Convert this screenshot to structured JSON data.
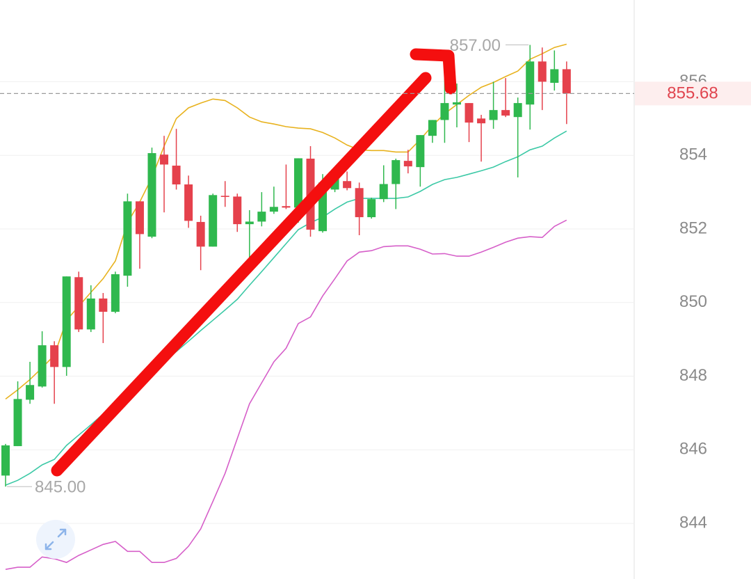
{
  "chart_data": {
    "type": "candlestick",
    "ylim": [
      842.49,
      858.22
    ],
    "yticks": [
      844,
      846,
      848,
      850,
      852,
      854,
      856
    ],
    "grid": true,
    "up_color": "#2fb84e",
    "down_color": "#e5414c",
    "open": [
      845.3,
      846.1,
      847.36,
      847.72,
      848.84,
      848.25,
      850.69,
      849.27,
      850.11,
      849.75,
      850.73,
      852.75,
      851.79,
      854.02,
      853.72,
      853.21,
      852.19,
      851.52,
      852.9,
      852.88,
      852.13,
      852.2,
      852.47,
      852.62,
      852.58,
      853.91,
      851.94,
      853.07,
      853.3,
      853.11,
      852.32,
      852.81,
      853.22,
      853.85,
      853.68,
      854.53,
      854.96,
      855.38,
      855.42,
      855.0,
      854.96,
      855.23,
      855.04,
      855.38,
      856.55,
      855.97,
      856.34
    ],
    "high": [
      846.16,
      847.86,
      848.39,
      849.22,
      848.95,
      850.71,
      850.84,
      850.47,
      850.26,
      850.84,
      852.96,
      852.75,
      854.21,
      854.53,
      854.72,
      853.45,
      852.36,
      852.96,
      853.3,
      852.96,
      852.51,
      853.0,
      853.15,
      853.75,
      853.92,
      854.25,
      853.49,
      853.6,
      853.56,
      853.26,
      852.85,
      853.73,
      853.91,
      854.15,
      854.55,
      854.96,
      856.1,
      855.95,
      855.42,
      855.1,
      856.0,
      856.1,
      855.57,
      857.0,
      856.93,
      856.85,
      856.55
    ],
    "low": [
      845.0,
      846.1,
      847.25,
      847.69,
      847.25,
      848.01,
      849.2,
      849.2,
      848.9,
      849.71,
      850.43,
      850.92,
      851.75,
      852.45,
      853.07,
      852.03,
      850.88,
      851.52,
      852.6,
      851.92,
      851.22,
      852.07,
      852.41,
      852.54,
      852.17,
      851.79,
      851.9,
      853.0,
      853.05,
      851.83,
      852.28,
      852.73,
      852.54,
      853.51,
      853.15,
      854.34,
      854.34,
      854.76,
      854.36,
      853.83,
      854.72,
      855.04,
      853.4,
      854.7,
      855.23,
      855.76,
      854.85
    ],
    "close": [
      846.12,
      847.38,
      847.76,
      848.84,
      848.25,
      850.71,
      849.27,
      850.11,
      849.75,
      850.77,
      852.75,
      851.86,
      854.06,
      853.75,
      853.21,
      852.22,
      851.52,
      852.92,
      852.87,
      852.13,
      852.2,
      852.47,
      852.6,
      852.58,
      853.92,
      851.98,
      853.26,
      853.53,
      853.11,
      852.32,
      852.81,
      853.22,
      853.87,
      853.7,
      854.55,
      854.96,
      855.42,
      855.44,
      854.89,
      854.87,
      855.23,
      855.08,
      855.42,
      856.55,
      856.0,
      856.34,
      855.68
    ],
    "series": [
      {
        "color": "#e8b21e",
        "values": [
          847.38,
          847.63,
          847.91,
          848.23,
          848.57,
          849.52,
          849.9,
          850.28,
          850.65,
          851.13,
          852.17,
          852.73,
          853.4,
          854.25,
          855.0,
          855.29,
          855.42,
          855.53,
          855.49,
          855.29,
          855.04,
          854.91,
          854.85,
          854.78,
          854.74,
          854.72,
          854.62,
          854.47,
          854.28,
          854.15,
          854.13,
          854.13,
          854.09,
          854.09,
          854.43,
          854.81,
          855.13,
          855.38,
          855.63,
          855.85,
          855.98,
          856.14,
          856.29,
          856.61,
          856.76,
          856.93,
          857.02
        ]
      },
      {
        "color": "#3cc9a6",
        "values": [
          845.04,
          845.17,
          845.36,
          845.59,
          845.74,
          846.12,
          846.4,
          846.68,
          846.97,
          847.25,
          847.53,
          847.82,
          848.1,
          848.39,
          848.67,
          848.95,
          849.24,
          849.52,
          849.8,
          850.09,
          850.47,
          850.84,
          851.22,
          851.6,
          851.98,
          852.17,
          852.32,
          852.54,
          852.73,
          852.83,
          852.83,
          852.83,
          852.83,
          852.87,
          853.02,
          853.21,
          853.34,
          853.4,
          853.49,
          853.58,
          853.68,
          853.83,
          853.96,
          854.15,
          854.25,
          854.47,
          854.66
        ]
      },
      {
        "color": "#d65fc9",
        "values": [
          842.75,
          842.81,
          842.81,
          843.09,
          843.04,
          842.94,
          843.13,
          843.28,
          843.43,
          843.51,
          843.24,
          843.24,
          842.94,
          842.94,
          843.05,
          843.38,
          843.85,
          844.6,
          845.36,
          846.31,
          847.25,
          847.82,
          848.39,
          848.76,
          849.43,
          849.61,
          850.18,
          850.65,
          851.13,
          851.37,
          851.41,
          851.52,
          851.54,
          851.54,
          851.45,
          851.32,
          851.33,
          851.26,
          851.26,
          851.37,
          851.5,
          851.64,
          851.75,
          851.79,
          851.77,
          852.07,
          852.24
        ]
      }
    ],
    "high_marker": {
      "value": 857,
      "label": "857.00"
    },
    "low_marker": {
      "value": 845,
      "label": "845.00"
    },
    "last_price": 855.68
  }
}
